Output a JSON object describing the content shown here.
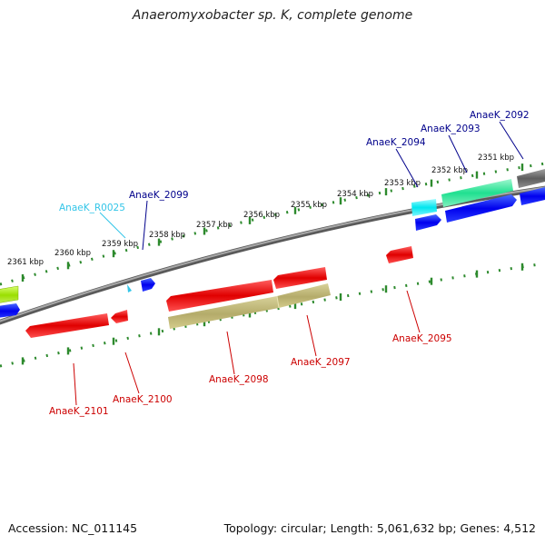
{
  "title": "Anaeromyxobacter sp. K, complete genome",
  "footer": {
    "accession": "Accession: NC_011145",
    "topology": "Topology: circular; Length: 5,061,632 bp; Genes: 4,512"
  },
  "ticks": [
    {
      "label": "2361 kbp"
    },
    {
      "label": "2360 kbp"
    },
    {
      "label": "2359 kbp"
    },
    {
      "label": "2358 kbp"
    },
    {
      "label": "2357 kbp"
    },
    {
      "label": "2356 kbp"
    },
    {
      "label": "2355 kbp"
    },
    {
      "label": "2354 kbp"
    },
    {
      "label": "2353 kbp"
    },
    {
      "label": "2352 kbp"
    },
    {
      "label": "2351 kbp"
    }
  ],
  "gene_labels": [
    {
      "label": "AnaeK_2092",
      "color": "#00008b"
    },
    {
      "label": "AnaeK_2093",
      "color": "#00008b"
    },
    {
      "label": "AnaeK_2094",
      "color": "#00008b"
    },
    {
      "label": "AnaeK_2099",
      "color": "#00008b"
    },
    {
      "label": "AnaeK_R0025",
      "color": "#33c5e8"
    },
    {
      "label": "AnaeK_2095",
      "color": "#cc0000"
    },
    {
      "label": "AnaeK_2097",
      "color": "#cc0000"
    },
    {
      "label": "AnaeK_2098",
      "color": "#cc0000"
    },
    {
      "label": "AnaeK_2100",
      "color": "#cc0000"
    },
    {
      "label": "AnaeK_2101",
      "color": "#cc0000"
    }
  ],
  "colors": {
    "backbone": "#8a8a8a",
    "tick_dots": "#2d8a2d",
    "red_gene": "#e00000",
    "olive_gene": "#b8b070",
    "blue_gene": "#0000ee",
    "cyan_gene": "#00e5ee",
    "green_gene": "#20e090",
    "gray_gene": "#6e6e6e",
    "lime_gene": "#9ade00"
  }
}
